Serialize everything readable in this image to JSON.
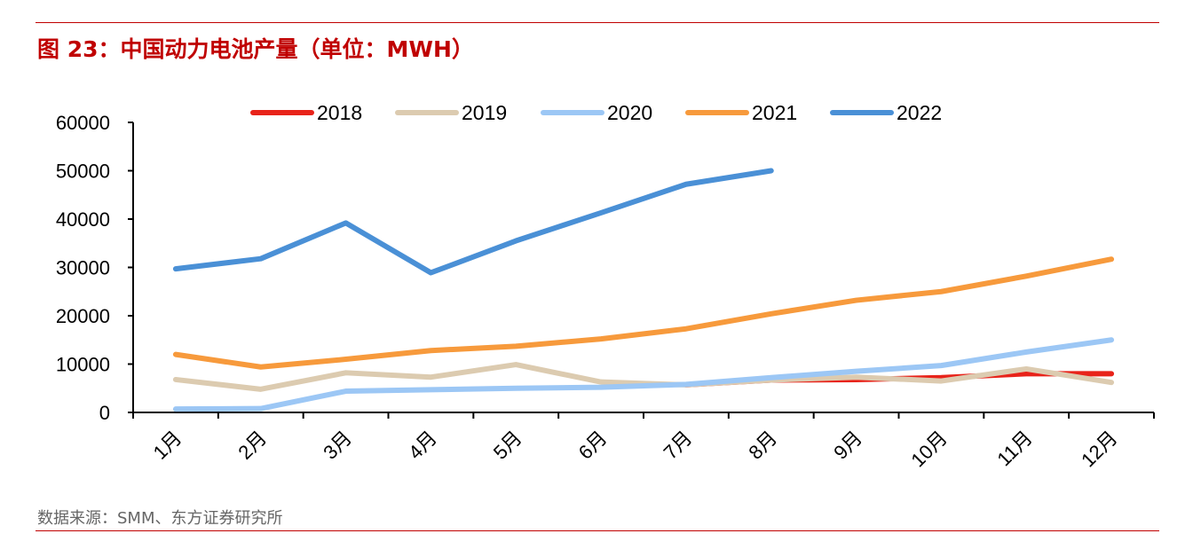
{
  "title": "图 23：中国动力电池产量（单位：MWH）",
  "source": "数据来源：SMM、东方证券研究所",
  "chart_data": {
    "type": "line",
    "title": "图 23：中国动力电池产量（单位：MWH）",
    "xlabel": "",
    "ylabel": "",
    "categories": [
      "1月",
      "2月",
      "3月",
      "4月",
      "5月",
      "6月",
      "7月",
      "8月",
      "9月",
      "10月",
      "11月",
      "12月"
    ],
    "ylim": [
      0,
      60000
    ],
    "yticks": [
      "0",
      "10000",
      "20000",
      "30000",
      "40000",
      "50000",
      "60000"
    ],
    "grid": false,
    "legend": "top",
    "series": [
      {
        "name": "2018",
        "color": "#e8231a",
        "values": [
          null,
          null,
          null,
          null,
          null,
          null,
          5700,
          6700,
          6800,
          7200,
          8000,
          8000
        ]
      },
      {
        "name": "2019",
        "color": "#dccbb0",
        "values": [
          6800,
          4800,
          8200,
          7300,
          9900,
          6300,
          5700,
          6700,
          7300,
          6500,
          9000,
          6200
        ]
      },
      {
        "name": "2020",
        "color": "#9cc7f5",
        "values": [
          700,
          800,
          4400,
          4700,
          5000,
          5200,
          5800,
          7200,
          8500,
          9700,
          12500,
          15000
        ]
      },
      {
        "name": "2021",
        "color": "#f79a3c",
        "values": [
          12000,
          9400,
          11000,
          12800,
          13700,
          15200,
          17300,
          20400,
          23200,
          25000,
          28200,
          31700
        ]
      },
      {
        "name": "2022",
        "color": "#4a90d6",
        "values": [
          29700,
          31800,
          39200,
          28900,
          35500,
          41300,
          47200,
          50000,
          null,
          null,
          null,
          null
        ]
      }
    ]
  }
}
